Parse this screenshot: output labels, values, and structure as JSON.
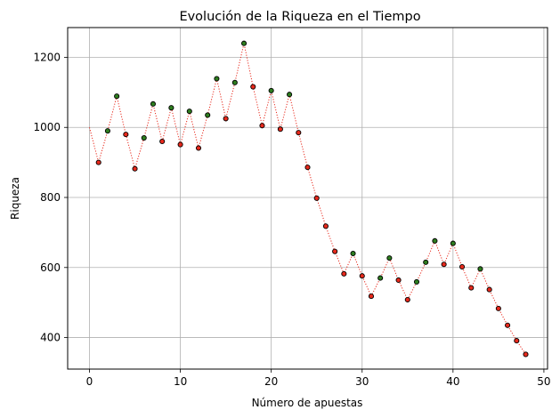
{
  "chart_data": {
    "type": "line",
    "title": "Evolución de la Riqueza en el Tiempo",
    "xlabel": "Número de apuestas",
    "ylabel": "Riqueza",
    "xlim": [
      -2.4,
      50.4
    ],
    "ylim": [
      310,
      1285
    ],
    "xticks": [
      0,
      10,
      20,
      30,
      40,
      50
    ],
    "yticks": [
      400,
      600,
      800,
      1000,
      1200
    ],
    "grid": true,
    "colors": {
      "line": "#e8291c",
      "win_marker": "#2e7d1f",
      "loss_marker": "#e8291c",
      "marker_edge": "#000000",
      "grid": "#b0b0b0"
    },
    "series": [
      {
        "values": [
          {
            "x": 0,
            "y": 1000,
            "outcome": "start"
          },
          {
            "x": 1,
            "y": 900,
            "outcome": "loss"
          },
          {
            "x": 2,
            "y": 990,
            "outcome": "win"
          },
          {
            "x": 3,
            "y": 1089,
            "outcome": "win"
          },
          {
            "x": 4,
            "y": 980,
            "outcome": "loss"
          },
          {
            "x": 5,
            "y": 882,
            "outcome": "loss"
          },
          {
            "x": 6,
            "y": 970,
            "outcome": "win"
          },
          {
            "x": 7,
            "y": 1067,
            "outcome": "win"
          },
          {
            "x": 8,
            "y": 960,
            "outcome": "loss"
          },
          {
            "x": 9,
            "y": 1056,
            "outcome": "win"
          },
          {
            "x": 10,
            "y": 951,
            "outcome": "loss"
          },
          {
            "x": 11,
            "y": 1046,
            "outcome": "win"
          },
          {
            "x": 12,
            "y": 941,
            "outcome": "loss"
          },
          {
            "x": 13,
            "y": 1035,
            "outcome": "win"
          },
          {
            "x": 14,
            "y": 1139,
            "outcome": "win"
          },
          {
            "x": 15,
            "y": 1025,
            "outcome": "loss"
          },
          {
            "x": 16,
            "y": 1128,
            "outcome": "win"
          },
          {
            "x": 17,
            "y": 1240,
            "outcome": "win"
          },
          {
            "x": 18,
            "y": 1116,
            "outcome": "loss"
          },
          {
            "x": 19,
            "y": 1005,
            "outcome": "loss"
          },
          {
            "x": 20,
            "y": 1105,
            "outcome": "win"
          },
          {
            "x": 21,
            "y": 995,
            "outcome": "loss"
          },
          {
            "x": 22,
            "y": 1094,
            "outcome": "win"
          },
          {
            "x": 23,
            "y": 985,
            "outcome": "loss"
          },
          {
            "x": 24,
            "y": 886,
            "outcome": "loss"
          },
          {
            "x": 25,
            "y": 798,
            "outcome": "loss"
          },
          {
            "x": 26,
            "y": 718,
            "outcome": "loss"
          },
          {
            "x": 27,
            "y": 646,
            "outcome": "loss"
          },
          {
            "x": 28,
            "y": 582,
            "outcome": "loss"
          },
          {
            "x": 29,
            "y": 640,
            "outcome": "win"
          },
          {
            "x": 30,
            "y": 576,
            "outcome": "loss"
          },
          {
            "x": 31,
            "y": 518,
            "outcome": "loss"
          },
          {
            "x": 32,
            "y": 570,
            "outcome": "win"
          },
          {
            "x": 33,
            "y": 627,
            "outcome": "win"
          },
          {
            "x": 34,
            "y": 564,
            "outcome": "loss"
          },
          {
            "x": 35,
            "y": 508,
            "outcome": "loss"
          },
          {
            "x": 36,
            "y": 559,
            "outcome": "win"
          },
          {
            "x": 37,
            "y": 615,
            "outcome": "win"
          },
          {
            "x": 38,
            "y": 676,
            "outcome": "win"
          },
          {
            "x": 39,
            "y": 609,
            "outcome": "loss"
          },
          {
            "x": 40,
            "y": 669,
            "outcome": "win"
          },
          {
            "x": 41,
            "y": 602,
            "outcome": "loss"
          },
          {
            "x": 42,
            "y": 542,
            "outcome": "loss"
          },
          {
            "x": 43,
            "y": 596,
            "outcome": "win"
          },
          {
            "x": 44,
            "y": 537,
            "outcome": "loss"
          },
          {
            "x": 45,
            "y": 483,
            "outcome": "loss"
          },
          {
            "x": 46,
            "y": 435,
            "outcome": "loss"
          },
          {
            "x": 47,
            "y": 391,
            "outcome": "loss"
          },
          {
            "x": 48,
            "y": 352,
            "outcome": "loss"
          }
        ]
      }
    ]
  }
}
